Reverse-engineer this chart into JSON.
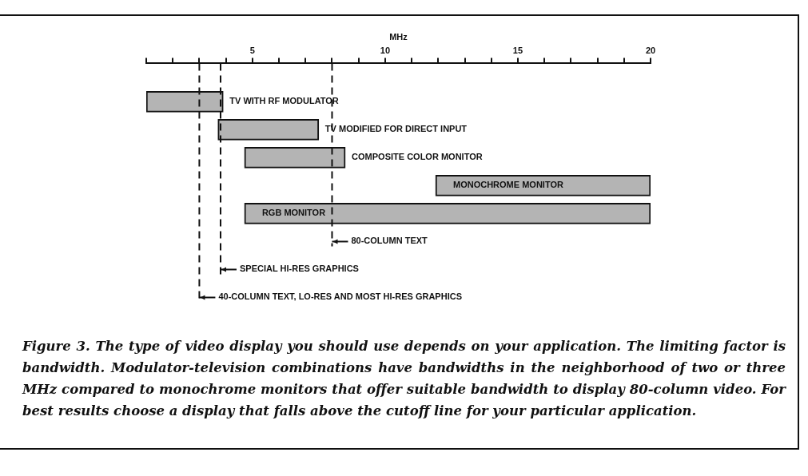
{
  "chart_data": {
    "type": "bar",
    "orientation": "horizontal",
    "xlabel": "MHz",
    "categories": [
      "TV WITH RF MODULATOR",
      "TV MODIFIED FOR DIRECT INPUT",
      "COMPOSITE COLOR MONITOR",
      "MONOCHROME MONITOR",
      "RGB MONITOR"
    ],
    "base": [
      1,
      3.7,
      4.7,
      11.9,
      4.7
    ],
    "values": [
      2.9,
      3.8,
      3.8,
      8.1,
      15.3
    ],
    "color": "#b4b4b4",
    "xlim": [
      1,
      20
    ],
    "xticks": [
      {
        "value": 1,
        "label": null
      },
      {
        "value": 2,
        "label": null
      },
      {
        "value": 3,
        "label": null
      },
      {
        "value": 4,
        "label": null
      },
      5,
      {
        "value": 6,
        "label": null
      },
      {
        "value": 7,
        "label": null
      },
      {
        "value": 8,
        "label": null
      },
      {
        "value": 9,
        "label": null
      },
      10,
      {
        "value": 11,
        "label": null
      },
      {
        "value": 12,
        "label": null
      },
      {
        "value": 13,
        "label": null
      },
      {
        "value": 14,
        "label": null
      },
      15,
      {
        "value": 16,
        "label": null
      },
      {
        "value": 17,
        "label": null
      },
      {
        "value": 18,
        "label": null
      },
      {
        "value": 19,
        "label": null
      },
      20
    ],
    "ref_lines": [
      {
        "axis": "x",
        "value": 8,
        "label": "80-COLUMN TEXT",
        "line_style": "dashed"
      },
      {
        "axis": "x",
        "value": 3.8,
        "label": "SPECIAL HI-RES GRAPHICS",
        "line_style": "dashed"
      },
      {
        "axis": "x",
        "value": 3,
        "label": "40-COLUMN TEXT, LO-RES AND MOST HI-RES GRAPHICS",
        "line_style": "dashed"
      }
    ],
    "grid": false,
    "legend": false,
    "annotations": [
      "Figure 3. The type of video display you should use depends on your application. The limiting factor is bandwidth. Modulator-television combinations have bandwidths in the neighborhood of two or three MHz compared to monochrome monitors that offer suitable bandwidth to display 80-column video. For best results choose a display that falls above the cutoff line for your particular application."
    ]
  }
}
